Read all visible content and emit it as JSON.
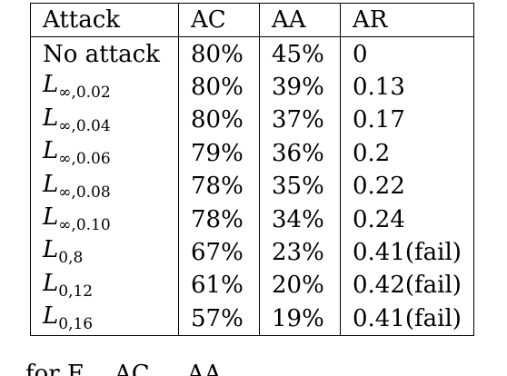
{
  "table": {
    "headers": [
      "Attack",
      "AC",
      "AA",
      "AR"
    ],
    "rows": [
      {
        "attack_base": "No attack",
        "attack_sub": "",
        "ac": "80%",
        "aa": "45%",
        "ar": "0"
      },
      {
        "attack_base": "L",
        "attack_sub": "∞,0.02",
        "ac": "80%",
        "aa": "39%",
        "ar": "0.13"
      },
      {
        "attack_base": "L",
        "attack_sub": "∞,0.04",
        "ac": "80%",
        "aa": "37%",
        "ar": "0.17"
      },
      {
        "attack_base": "L",
        "attack_sub": "∞,0.06",
        "ac": "79%",
        "aa": "36%",
        "ar": "0.2"
      },
      {
        "attack_base": "L",
        "attack_sub": "∞,0.08",
        "ac": "78%",
        "aa": "35%",
        "ar": "0.22"
      },
      {
        "attack_base": "L",
        "attack_sub": "∞,0.10",
        "ac": "78%",
        "aa": "34%",
        "ar": "0.24"
      },
      {
        "attack_base": "L",
        "attack_sub": "0,8",
        "ac": "67%",
        "aa": "23%",
        "ar": "0.41(fail)"
      },
      {
        "attack_base": "L",
        "attack_sub": "0,12",
        "ac": "61%",
        "aa": "20%",
        "ar": "0.42(fail)"
      },
      {
        "attack_base": "L",
        "attack_sub": "0,16",
        "ac": "57%",
        "aa": "19%",
        "ar": "0.41(fail)"
      }
    ]
  },
  "caption_fragment": "for E... AC ... AA ... "
}
